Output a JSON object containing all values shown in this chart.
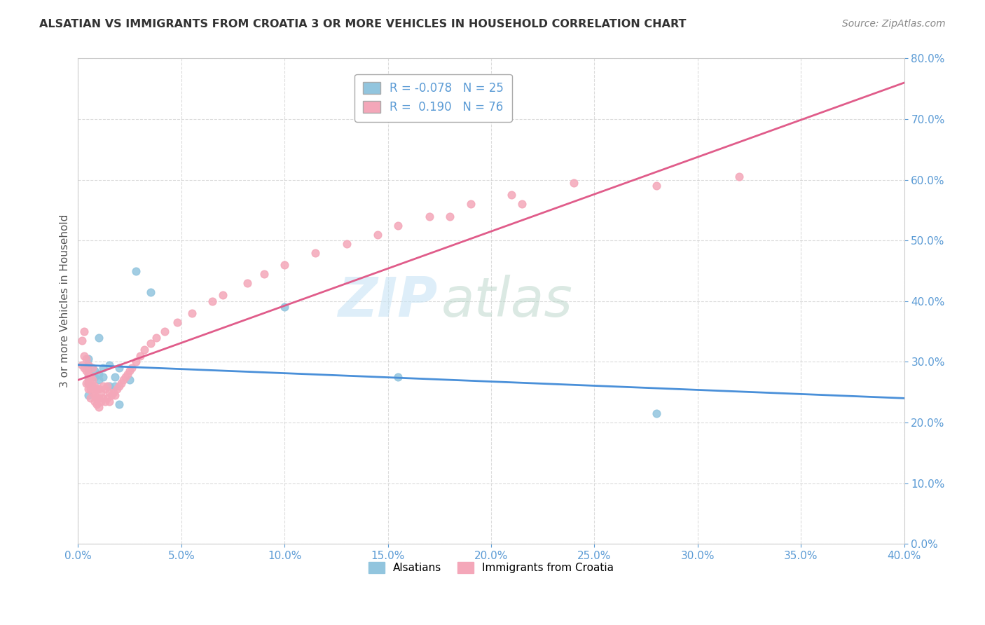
{
  "title": "ALSATIAN VS IMMIGRANTS FROM CROATIA 3 OR MORE VEHICLES IN HOUSEHOLD CORRELATION CHART",
  "source": "Source: ZipAtlas.com",
  "xlabel": "",
  "ylabel": "3 or more Vehicles in Household",
  "xlim": [
    0.0,
    0.4
  ],
  "ylim": [
    0.0,
    0.8
  ],
  "xticks": [
    0.0,
    0.05,
    0.1,
    0.15,
    0.2,
    0.25,
    0.3,
    0.35,
    0.4
  ],
  "yticks": [
    0.0,
    0.1,
    0.2,
    0.3,
    0.4,
    0.5,
    0.6,
    0.7,
    0.8
  ],
  "legend_labels": [
    "Alsatians",
    "Immigrants from Croatia"
  ],
  "legend_R": [
    -0.078,
    0.19
  ],
  "legend_N": [
    25,
    76
  ],
  "blue_color": "#92C5DE",
  "pink_color": "#F4A7B9",
  "blue_line_color": "#4A90D9",
  "pink_line_color": "#E05C8A",
  "watermark_zip": "ZIP",
  "watermark_atlas": "atlas",
  "blue_scatter_x": [
    0.005,
    0.005,
    0.005,
    0.005,
    0.005,
    0.005,
    0.008,
    0.008,
    0.01,
    0.01,
    0.01,
    0.012,
    0.012,
    0.015,
    0.015,
    0.018,
    0.018,
    0.02,
    0.02,
    0.025,
    0.028,
    0.035,
    0.1,
    0.155,
    0.28
  ],
  "blue_scatter_y": [
    0.245,
    0.265,
    0.275,
    0.285,
    0.295,
    0.305,
    0.275,
    0.285,
    0.27,
    0.28,
    0.34,
    0.275,
    0.29,
    0.26,
    0.295,
    0.26,
    0.275,
    0.23,
    0.29,
    0.27,
    0.45,
    0.415,
    0.39,
    0.275,
    0.215
  ],
  "pink_scatter_x": [
    0.002,
    0.002,
    0.003,
    0.003,
    0.003,
    0.004,
    0.004,
    0.004,
    0.005,
    0.005,
    0.005,
    0.005,
    0.005,
    0.006,
    0.006,
    0.006,
    0.006,
    0.007,
    0.007,
    0.007,
    0.007,
    0.008,
    0.008,
    0.008,
    0.009,
    0.009,
    0.009,
    0.01,
    0.01,
    0.01,
    0.011,
    0.011,
    0.012,
    0.012,
    0.013,
    0.013,
    0.014,
    0.014,
    0.015,
    0.015,
    0.016,
    0.017,
    0.018,
    0.019,
    0.02,
    0.021,
    0.022,
    0.023,
    0.024,
    0.025,
    0.026,
    0.028,
    0.03,
    0.032,
    0.035,
    0.038,
    0.042,
    0.048,
    0.055,
    0.065,
    0.07,
    0.082,
    0.09,
    0.1,
    0.115,
    0.13,
    0.145,
    0.155,
    0.17,
    0.19,
    0.21,
    0.24,
    0.18,
    0.215,
    0.28,
    0.32
  ],
  "pink_scatter_y": [
    0.295,
    0.335,
    0.29,
    0.31,
    0.35,
    0.265,
    0.285,
    0.305,
    0.255,
    0.265,
    0.27,
    0.28,
    0.295,
    0.24,
    0.255,
    0.265,
    0.275,
    0.25,
    0.26,
    0.27,
    0.29,
    0.235,
    0.245,
    0.26,
    0.23,
    0.24,
    0.255,
    0.225,
    0.24,
    0.255,
    0.235,
    0.25,
    0.24,
    0.26,
    0.235,
    0.255,
    0.24,
    0.26,
    0.235,
    0.25,
    0.245,
    0.25,
    0.245,
    0.255,
    0.26,
    0.265,
    0.27,
    0.275,
    0.28,
    0.285,
    0.29,
    0.3,
    0.31,
    0.32,
    0.33,
    0.34,
    0.35,
    0.365,
    0.38,
    0.4,
    0.41,
    0.43,
    0.445,
    0.46,
    0.48,
    0.495,
    0.51,
    0.525,
    0.54,
    0.56,
    0.575,
    0.595,
    0.54,
    0.56,
    0.59,
    0.605
  ],
  "blue_trend_x": [
    0.0,
    0.4
  ],
  "blue_trend_y": [
    0.295,
    0.24
  ],
  "pink_trend_x": [
    0.0,
    0.4
  ],
  "pink_trend_y": [
    0.27,
    0.76
  ],
  "background_color": "#FFFFFF",
  "grid_color": "#CCCCCC",
  "tick_color": "#5B9BD5",
  "r_value_color": "#5B9BD5",
  "n_value_color": "#5B9BD5"
}
